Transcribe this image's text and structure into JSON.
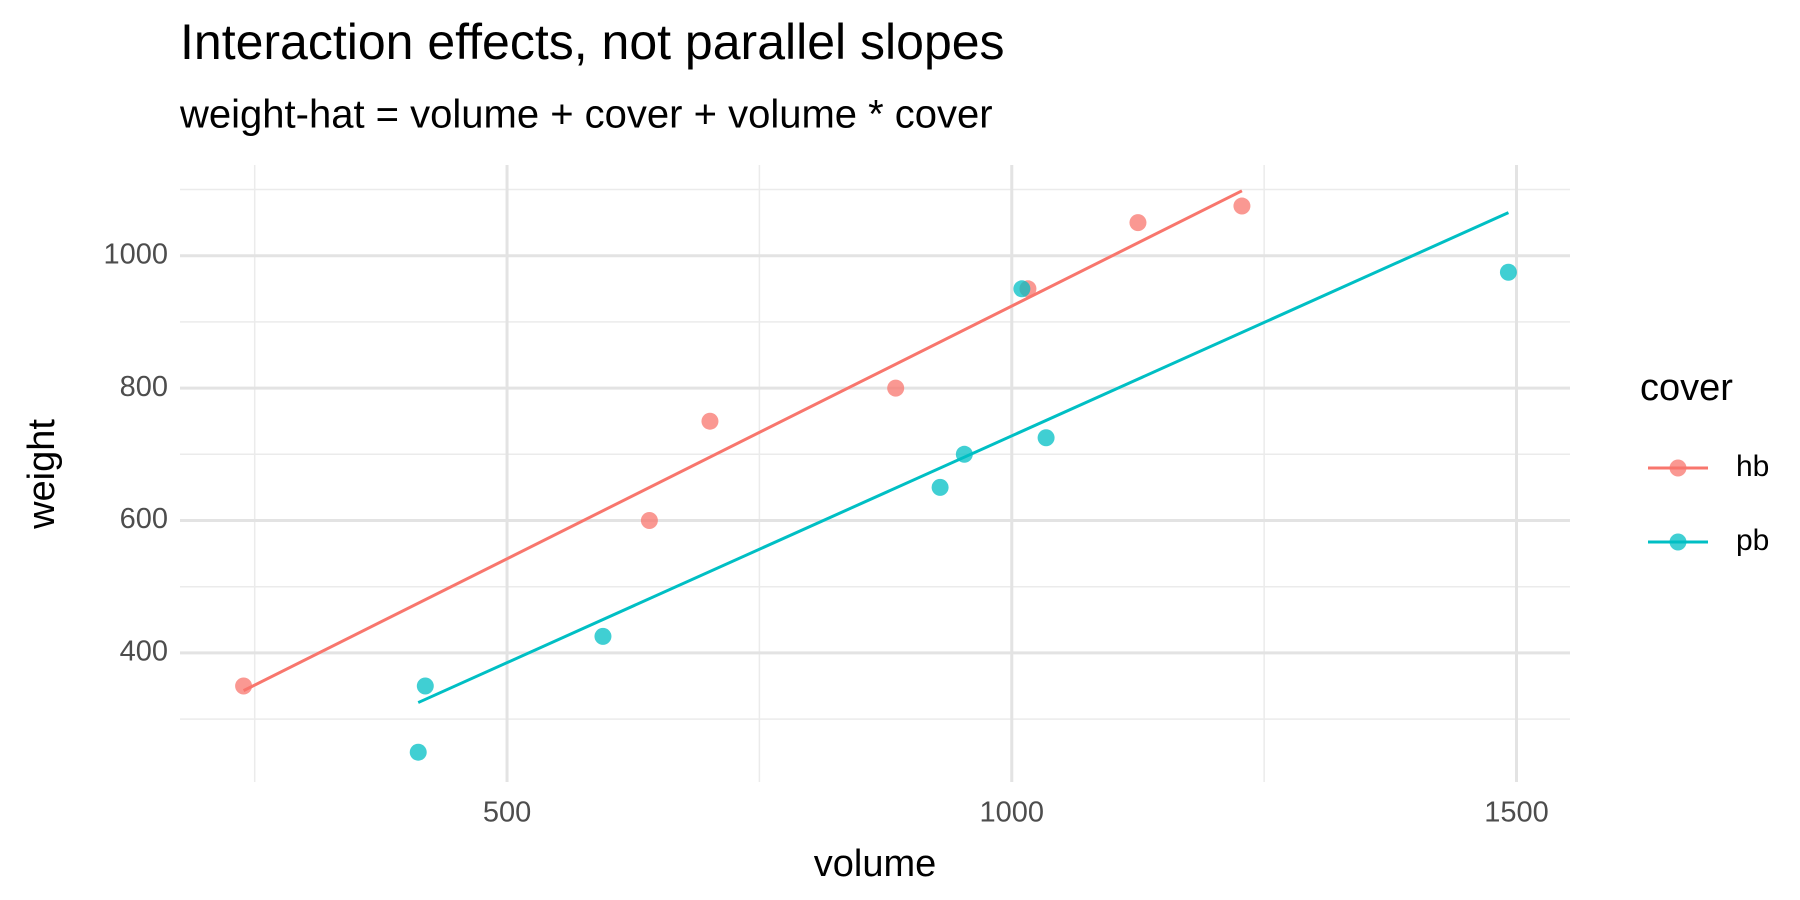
{
  "chart_data": {
    "type": "scatter",
    "title": "Interaction effects, not parallel slopes",
    "subtitle": "weight-hat = volume + cover + volume * cover",
    "x_label": "volume",
    "y_label": "weight",
    "legend_title": "cover",
    "legend_position": "right",
    "grid": true,
    "xlim": [
      176,
      1553
    ],
    "xticks": [
      500,
      1000,
      1500
    ],
    "xminor": [
      250,
      750,
      1250
    ],
    "ylim": [
      205,
      1137
    ],
    "yticks": [
      400,
      600,
      800,
      1000
    ],
    "yminor": [
      300,
      500,
      700,
      900,
      1100
    ],
    "series": [
      {
        "name": "hb",
        "color": "#F8766D",
        "x": [
          885,
          1016,
          1125,
          239,
          701,
          641,
          1228
        ],
        "values": [
          800,
          950,
          1050,
          350,
          750,
          600,
          1075
        ],
        "line": {
          "x": [
            239,
            1228
          ],
          "values": [
            343,
            1098
          ]
        }
      },
      {
        "name": "pb",
        "color": "#00BFC4",
        "x": [
          412,
          953,
          929,
          1492,
          419,
          1010,
          595,
          1034
        ],
        "values": [
          250,
          700,
          650,
          975,
          350,
          950,
          425,
          725
        ],
        "line": {
          "x": [
            412,
            1492
          ],
          "values": [
            325,
            1065
          ]
        }
      }
    ]
  }
}
